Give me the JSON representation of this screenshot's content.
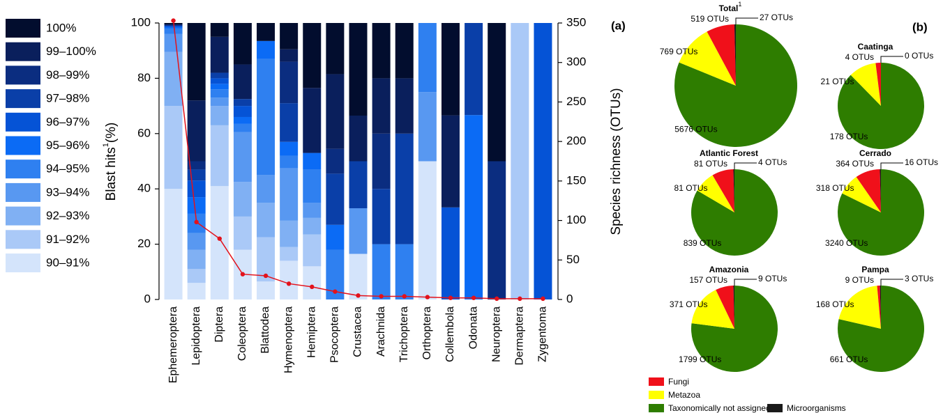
{
  "chart_data": [
    {
      "type": "bar",
      "stacked": true,
      "panel_label": "(a)",
      "categories": [
        "Ephemeroptera",
        "Lepidoptera",
        "Diptera",
        "Coleoptera",
        "Blattodea",
        "Hymenoptera",
        "Hemiptera",
        "Psocoptera",
        "Crustacea",
        "Arachnida",
        "Trichoptera",
        "Orthoptera",
        "Collembola",
        "Odonata",
        "Neuroptera",
        "Dermaptera",
        "Zygentoma"
      ],
      "series": [
        {
          "name": "90–91%",
          "color": "#d4e4fb",
          "values": [
            40,
            6,
            41,
            18,
            6.5,
            14,
            12,
            0,
            16.5,
            0,
            0,
            50,
            0,
            0,
            0,
            0,
            0
          ]
        },
        {
          "name": "91–92%",
          "color": "#aac9f7",
          "values": [
            30,
            5,
            22,
            12,
            16,
            5,
            11.5,
            0,
            0,
            0,
            0,
            0,
            0,
            0,
            0,
            100,
            0
          ]
        },
        {
          "name": "92–93%",
          "color": "#80b0f3",
          "values": [
            19.5,
            7,
            7,
            12.5,
            12.5,
            9.5,
            6,
            0,
            0,
            0,
            0,
            0,
            0,
            0,
            0,
            0,
            0
          ]
        },
        {
          "name": "93–94%",
          "color": "#5898f1",
          "values": [
            6.5,
            6,
            3,
            18,
            10,
            19,
            5.5,
            0,
            16.5,
            0,
            0,
            25,
            0,
            0,
            0,
            0,
            0
          ]
        },
        {
          "name": "94–95%",
          "color": "#2f80f0",
          "values": [
            2,
            7,
            3,
            3,
            42,
            4.5,
            12,
            18,
            0,
            20,
            20,
            25,
            0,
            0,
            0,
            0,
            0
          ]
        },
        {
          "name": "95–96%",
          "color": "#0b6bf5",
          "values": [
            0.5,
            6,
            2,
            2.5,
            6.5,
            5,
            6,
            9,
            0,
            0,
            0,
            0,
            0,
            66.7,
            0,
            0,
            0
          ]
        },
        {
          "name": "96–97%",
          "color": "#0553d6",
          "values": [
            0.5,
            6,
            2,
            4,
            0,
            0,
            0,
            0,
            0,
            0,
            0,
            0,
            33.3,
            0,
            0,
            0,
            100
          ]
        },
        {
          "name": "97–98%",
          "color": "#0a3fa8",
          "values": [
            0,
            4,
            2,
            2.5,
            0,
            14,
            0,
            18.5,
            17,
            20,
            40,
            0,
            0,
            33.3,
            0,
            0,
            0
          ]
        },
        {
          "name": "98–99%",
          "color": "#0b2d80",
          "values": [
            0.5,
            3,
            0,
            0,
            0,
            15,
            0,
            9,
            0,
            20,
            0,
            0,
            0,
            0,
            50,
            0,
            0
          ]
        },
        {
          "name": "99–100%",
          "color": "#0a1f5c",
          "values": [
            0,
            22,
            13,
            12.5,
            0,
            4.5,
            23.5,
            27,
            16.5,
            20,
            20,
            0,
            33.3,
            0,
            0,
            0,
            0
          ]
        },
        {
          "name": "100%",
          "color": "#020d2e",
          "values": [
            0.5,
            28,
            5,
            15,
            6.5,
            9.5,
            23.5,
            18.5,
            33.5,
            20,
            20,
            0,
            33.4,
            0,
            50,
            0,
            0
          ]
        }
      ],
      "line": {
        "color": "#e3121b",
        "axis": "y2",
        "values": [
          353,
          98,
          77,
          32,
          30,
          20,
          16,
          10,
          5,
          4,
          4,
          3,
          2,
          2,
          1,
          1,
          1
        ]
      },
      "ylim": [
        0,
        100
      ],
      "yticks": [
        0,
        20,
        40,
        60,
        80,
        100
      ],
      "y2lim": [
        0,
        350
      ],
      "y2ticks": [
        0,
        50,
        100,
        150,
        200,
        250,
        300,
        350
      ],
      "ylabel": "Blast hits",
      "ylabel_superscript": "1",
      "ylabel_suffix": "(%)",
      "y2label": "Species richness (OTUs)"
    },
    {
      "type": "pie",
      "panel_label": "(b)",
      "categories": [
        "Fungi",
        "Metazoa",
        "Taxonomically not assigned",
        "Microorganisms"
      ],
      "colors": [
        "#f0101a",
        "#ffff00",
        "#2e7d00",
        "#1a1a1a"
      ],
      "pies": [
        {
          "title": "Total",
          "title_superscript": "1",
          "values": [
            519,
            769,
            5676,
            27
          ],
          "value_labels": [
            "519 OTUs",
            "769 OTUs",
            "5676 OTUs",
            "27 OTUs"
          ]
        },
        {
          "title": "Caatinga",
          "values": [
            4,
            21,
            178,
            0
          ],
          "value_labels": [
            "4 OTUs",
            "21 OTUs",
            "178 OTUs",
            "0 OTUs"
          ]
        },
        {
          "title": "Atlantic Forest",
          "values": [
            81,
            81,
            839,
            4
          ],
          "value_labels": [
            "81 OTUs",
            "81 OTUs",
            "839 OTUs",
            "4 OTUs"
          ]
        },
        {
          "title": "Cerrado",
          "values": [
            364,
            318,
            3240,
            16
          ],
          "value_labels": [
            "364 OTUs",
            "318 OTUs",
            "3240 OTUs",
            "16 OTUs"
          ]
        },
        {
          "title": "Amazonia",
          "values": [
            157,
            371,
            1799,
            9
          ],
          "value_labels": [
            "157 OTUs",
            "371 OTUs",
            "1799 OTUs",
            "9 OTUs"
          ]
        },
        {
          "title": "Pampa",
          "values": [
            9,
            168,
            661,
            3
          ],
          "value_labels": [
            "9 OTUs",
            "168 OTUs",
            "661 OTUs",
            "3 OTUs"
          ]
        }
      ]
    }
  ]
}
